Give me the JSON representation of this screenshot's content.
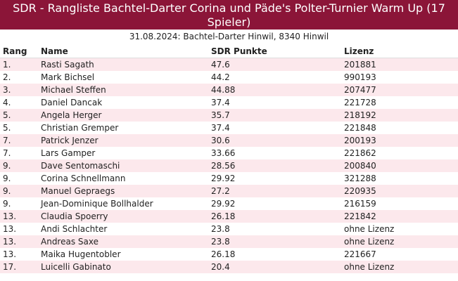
{
  "header": {
    "title": "SDR - Rangliste Bachtel-Darter Corina und Päde's Polter-Turnier Warm Up (17 Spieler)",
    "subtitle": "31.08.2024: Bachtel-Darter Hinwil, 8340 Hinwil"
  },
  "table": {
    "headers": {
      "rank": "Rang",
      "name": "Name",
      "points": "SDR Punkte",
      "license": "Lizenz"
    },
    "rows": [
      {
        "rank": "1.",
        "name": "Rasti Sagath",
        "points": "47.6",
        "license": "201881"
      },
      {
        "rank": "2.",
        "name": "Mark Bichsel",
        "points": "44.2",
        "license": "990193"
      },
      {
        "rank": "3.",
        "name": "Michael Steffen",
        "points": "44.88",
        "license": "207477"
      },
      {
        "rank": "4.",
        "name": "Daniel Dancak",
        "points": "37.4",
        "license": "221728"
      },
      {
        "rank": "5.",
        "name": "Angela Herger",
        "points": "35.7",
        "license": "218192"
      },
      {
        "rank": "5.",
        "name": "Christian Gremper",
        "points": "37.4",
        "license": "221848"
      },
      {
        "rank": "7.",
        "name": "Patrick Jenzer",
        "points": "30.6",
        "license": "200193"
      },
      {
        "rank": "7.",
        "name": "Lars Gamper",
        "points": "33.66",
        "license": "221862"
      },
      {
        "rank": "9.",
        "name": "Dave Sentomaschi",
        "points": "28.56",
        "license": "200840"
      },
      {
        "rank": "9.",
        "name": "Corina Schnellmann",
        "points": "29.92",
        "license": "321288"
      },
      {
        "rank": "9.",
        "name": "Manuel Gepraegs",
        "points": "27.2",
        "license": "220935"
      },
      {
        "rank": "9.",
        "name": "Jean-Dominique Bollhalder",
        "points": "29.92",
        "license": "216159"
      },
      {
        "rank": "13.",
        "name": "Claudia Spoerry",
        "points": "26.18",
        "license": "221842"
      },
      {
        "rank": "13.",
        "name": "Andi Schlachter",
        "points": "23.8",
        "license": "ohne Lizenz"
      },
      {
        "rank": "13.",
        "name": "Andreas Saxe",
        "points": "23.8",
        "license": "ohne Lizenz"
      },
      {
        "rank": "13.",
        "name": "Maika Hugentobler",
        "points": "26.18",
        "license": "221667"
      },
      {
        "rank": "17.",
        "name": "Luicelli Gabinato",
        "points": "20.4",
        "license": "ohne Lizenz"
      }
    ]
  },
  "colors": {
    "title_bg": "#8b1538",
    "row_alt": "#fce8ec"
  }
}
